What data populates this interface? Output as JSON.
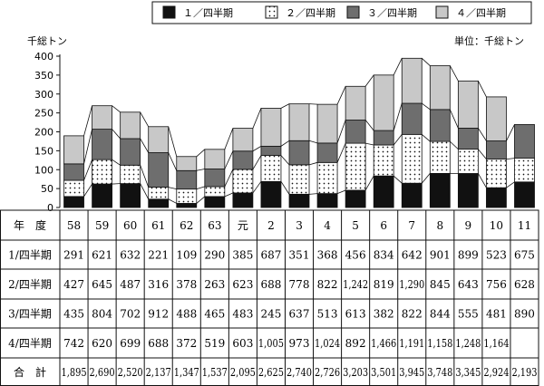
{
  "chart_data": {
    "type": "bar",
    "stacked": true,
    "unit_left": "千総トン",
    "unit_right": "単位：千総トン",
    "ylim": [
      0,
      400
    ],
    "yticks": [
      0,
      50,
      100,
      150,
      200,
      250,
      300,
      350,
      400
    ],
    "legend_position": "top",
    "categories": [
      "58",
      "59",
      "60",
      "61",
      "62",
      "63",
      "元",
      "2",
      "3",
      "4",
      "5",
      "6",
      "7",
      "8",
      "9",
      "10",
      "11"
    ],
    "series": [
      {
        "name": "１／四半期",
        "color": "#111111",
        "pattern": "solid",
        "values": [
          29.1,
          62.1,
          63.2,
          22.1,
          10.9,
          29.0,
          38.5,
          68.7,
          35.1,
          36.8,
          45.6,
          83.4,
          64.2,
          90.1,
          89.9,
          52.3,
          67.5
        ]
      },
      {
        "name": "２／四半期",
        "color": "#ffffff",
        "pattern": "dots",
        "values": [
          42.7,
          64.5,
          48.7,
          31.6,
          37.8,
          26.3,
          62.3,
          68.8,
          77.8,
          82.2,
          124.2,
          81.9,
          129.0,
          84.5,
          64.3,
          75.6,
          62.8
        ]
      },
      {
        "name": "３／四半期",
        "color": "#6e6e6e",
        "pattern": "solid",
        "values": [
          43.5,
          80.4,
          70.2,
          91.2,
          48.8,
          46.5,
          48.3,
          24.5,
          63.7,
          51.3,
          61.3,
          38.2,
          82.2,
          84.4,
          55.5,
          48.1,
          89.0
        ]
      },
      {
        "name": "４／四半期",
        "color": "#c8c8c8",
        "pattern": "solid",
        "values": [
          74.2,
          62.0,
          69.9,
          68.8,
          37.2,
          51.9,
          60.3,
          100.5,
          97.3,
          102.4,
          89.2,
          146.6,
          119.1,
          115.8,
          124.8,
          116.4,
          null
        ]
      }
    ],
    "table": {
      "header_label": "年　度",
      "years": [
        "58",
        "59",
        "60",
        "61",
        "62",
        "63",
        "元",
        "2",
        "3",
        "4",
        "5",
        "6",
        "7",
        "8",
        "9",
        "10",
        "11"
      ],
      "rows": [
        {
          "label": "1/四半期",
          "values": [
            "291",
            "621",
            "632",
            "221",
            "109",
            "290",
            "385",
            "687",
            "351",
            "368",
            "456",
            "834",
            "642",
            "901",
            "899",
            "523",
            "675"
          ]
        },
        {
          "label": "2/四半期",
          "values": [
            "427",
            "645",
            "487",
            "316",
            "378",
            "263",
            "623",
            "688",
            "778",
            "822",
            "1,242",
            "819",
            "1,290",
            "845",
            "643",
            "756",
            "628"
          ]
        },
        {
          "label": "3/四半期",
          "values": [
            "435",
            "804",
            "702",
            "912",
            "488",
            "465",
            "483",
            "245",
            "637",
            "513",
            "613",
            "382",
            "822",
            "844",
            "555",
            "481",
            "890"
          ]
        },
        {
          "label": "4/四半期",
          "values": [
            "742",
            "620",
            "699",
            "688",
            "372",
            "519",
            "603",
            "1,005",
            "973",
            "1,024",
            "892",
            "1,466",
            "1,191",
            "1,158",
            "1,248",
            "1,164",
            ""
          ]
        },
        {
          "label": "合　計",
          "values": [
            "1,895",
            "2,690",
            "2,520",
            "2,137",
            "1,347",
            "1,537",
            "2,095",
            "2,625",
            "2,740",
            "2,726",
            "3,203",
            "3,501",
            "3,945",
            "3,748",
            "3,345",
            "2,924",
            "2,193"
          ]
        }
      ]
    }
  }
}
